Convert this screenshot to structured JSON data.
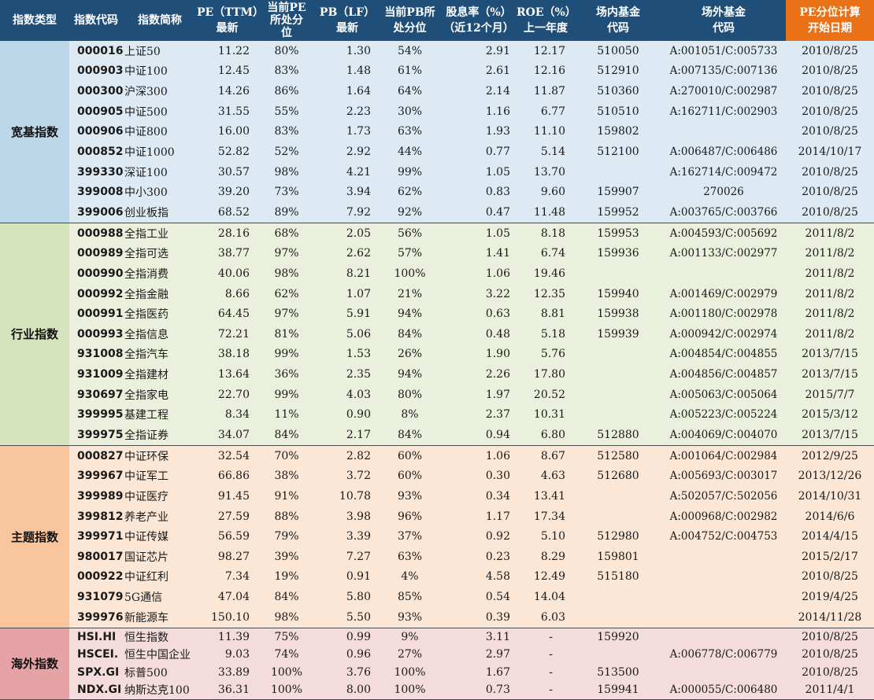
{
  "headers": {
    "type": "指数类型",
    "code": "指数代码",
    "name": "指数简称",
    "pe_a": "PE（TTM）",
    "pe_b": "最新",
    "pep_a": "当前PE",
    "pep_b": "所处分",
    "pep_c": "位",
    "pb_a": "PB（LF）",
    "pb_b": "最新",
    "pbp_a": "当前PB所",
    "pbp_b": "处分位",
    "div_a": "股息率（%）",
    "div_b": "（近12个月）",
    "roe_a": "ROE（%）",
    "roe_b": "上一年度",
    "inner_a": "场内基金",
    "inner_b": "代码",
    "outer_a": "场外基金",
    "outer_b": "代码",
    "start_a": "PE分位计算",
    "start_b": "开始日期"
  },
  "colors": {
    "header": "#1f4e79",
    "header_highlight": "#e97118",
    "broad": "#deeaf3",
    "industry": "#eaf0db",
    "theme": "#fce6d6",
    "overseas": "#f4dcdc"
  },
  "groups": [
    {
      "category": "宽基指数",
      "rows": [
        {
          "code": "000016",
          "name": "上证50",
          "pe": "11.22",
          "pe_pct": "80%",
          "pb": "1.30",
          "pb_pct": "54%",
          "div": "2.91",
          "roe": "12.17",
          "inner": "510050",
          "outer": "A:001051/C:005733",
          "start": "2010/8/25"
        },
        {
          "code": "000903",
          "name": "中证100",
          "pe": "12.45",
          "pe_pct": "83%",
          "pb": "1.48",
          "pb_pct": "61%",
          "div": "2.61",
          "roe": "12.16",
          "inner": "512910",
          "outer": "A:007135/C:007136",
          "start": "2010/8/25"
        },
        {
          "code": "000300",
          "name": "沪深300",
          "pe": "14.26",
          "pe_pct": "86%",
          "pb": "1.64",
          "pb_pct": "64%",
          "div": "2.14",
          "roe": "11.87",
          "inner": "510360",
          "outer": "A:270010/C:002987",
          "start": "2010/8/25"
        },
        {
          "code": "000905",
          "name": "中证500",
          "pe": "31.55",
          "pe_pct": "55%",
          "pb": "2.23",
          "pb_pct": "30%",
          "div": "1.16",
          "roe": "6.77",
          "inner": "510510",
          "outer": "A:162711/C:002903",
          "start": "2010/8/25"
        },
        {
          "code": "000906",
          "name": "中证800",
          "pe": "16.00",
          "pe_pct": "83%",
          "pb": "1.73",
          "pb_pct": "63%",
          "div": "1.93",
          "roe": "11.10",
          "inner": "159802",
          "outer": "",
          "start": "2010/8/25"
        },
        {
          "code": "000852",
          "name": "中证1000",
          "pe": "52.82",
          "pe_pct": "52%",
          "pb": "2.92",
          "pb_pct": "44%",
          "div": "0.77",
          "roe": "5.14",
          "inner": "512100",
          "outer": "A:006487/C:006486",
          "start": "2014/10/17"
        },
        {
          "code": "399330",
          "name": "深证100",
          "pe": "30.57",
          "pe_pct": "98%",
          "pb": "4.21",
          "pb_pct": "99%",
          "div": "1.05",
          "roe": "13.70",
          "inner": "",
          "outer": "A:162714/C:009472",
          "start": "2010/8/25"
        },
        {
          "code": "399008",
          "name": "中小300",
          "pe": "39.20",
          "pe_pct": "73%",
          "pb": "3.94",
          "pb_pct": "62%",
          "div": "0.83",
          "roe": "9.60",
          "inner": "159907",
          "outer": "270026",
          "start": "2010/8/25"
        },
        {
          "code": "399006",
          "name": "创业板指",
          "pe": "68.52",
          "pe_pct": "89%",
          "pb": "7.92",
          "pb_pct": "92%",
          "div": "0.47",
          "roe": "11.48",
          "inner": "159952",
          "outer": "A:003765/C:003766",
          "start": "2010/8/25"
        }
      ]
    },
    {
      "category": "行业指数",
      "rows": [
        {
          "code": "000988",
          "name": "全指工业",
          "pe": "28.16",
          "pe_pct": "68%",
          "pb": "2.05",
          "pb_pct": "56%",
          "div": "1.05",
          "roe": "8.18",
          "inner": "159953",
          "outer": "A:004593/C:005692",
          "start": "2011/8/2"
        },
        {
          "code": "000989",
          "name": "全指可选",
          "pe": "38.77",
          "pe_pct": "97%",
          "pb": "2.62",
          "pb_pct": "57%",
          "div": "1.41",
          "roe": "6.74",
          "inner": "159936",
          "outer": "A:001133/C:002977",
          "start": "2011/8/2"
        },
        {
          "code": "000990",
          "name": "全指消费",
          "pe": "40.06",
          "pe_pct": "98%",
          "pb": "8.21",
          "pb_pct": "100%",
          "div": "1.06",
          "roe": "19.46",
          "inner": "",
          "outer": "",
          "start": "2011/8/2"
        },
        {
          "code": "000992",
          "name": "全指金融",
          "pe": "8.66",
          "pe_pct": "62%",
          "pb": "1.07",
          "pb_pct": "21%",
          "div": "3.22",
          "roe": "12.35",
          "inner": "159940",
          "outer": "A:001469/C:002979",
          "start": "2011/8/2"
        },
        {
          "code": "000991",
          "name": "全指医药",
          "pe": "64.45",
          "pe_pct": "97%",
          "pb": "5.91",
          "pb_pct": "94%",
          "div": "0.63",
          "roe": "8.81",
          "inner": "159938",
          "outer": "A:001180/C:002978",
          "start": "2011/8/2"
        },
        {
          "code": "000993",
          "name": "全指信息",
          "pe": "72.21",
          "pe_pct": "81%",
          "pb": "5.06",
          "pb_pct": "84%",
          "div": "0.48",
          "roe": "5.18",
          "inner": "159939",
          "outer": "A:000942/C:002974",
          "start": "2011/8/2"
        },
        {
          "code": "931008",
          "name": "全指汽车",
          "pe": "38.18",
          "pe_pct": "99%",
          "pb": "1.53",
          "pb_pct": "26%",
          "div": "1.90",
          "roe": "5.76",
          "inner": "",
          "outer": "A:004854/C:004855",
          "start": "2013/7/15"
        },
        {
          "code": "931009",
          "name": "全指建材",
          "pe": "13.64",
          "pe_pct": "36%",
          "pb": "2.35",
          "pb_pct": "94%",
          "div": "2.26",
          "roe": "17.80",
          "inner": "",
          "outer": "A:004856/C:004857",
          "start": "2013/7/15"
        },
        {
          "code": "930697",
          "name": "全指家电",
          "pe": "22.70",
          "pe_pct": "99%",
          "pb": "4.03",
          "pb_pct": "80%",
          "div": "1.97",
          "roe": "20.52",
          "inner": "",
          "outer": "A:005063/C:005064",
          "start": "2015/7/7"
        },
        {
          "code": "399995",
          "name": "基建工程",
          "pe": "8.34",
          "pe_pct": "11%",
          "pb": "0.90",
          "pb_pct": "8%",
          "div": "2.37",
          "roe": "10.31",
          "inner": "",
          "outer": "A:005223/C:005224",
          "start": "2015/3/12"
        },
        {
          "code": "399975",
          "name": "全指证券",
          "pe": "34.07",
          "pe_pct": "84%",
          "pb": "2.17",
          "pb_pct": "84%",
          "div": "0.94",
          "roe": "6.80",
          "inner": "512880",
          "outer": "A:004069/C:004070",
          "start": "2013/7/15"
        }
      ]
    },
    {
      "category": "主题指数",
      "rows": [
        {
          "code": "000827",
          "name": "中证环保",
          "pe": "32.54",
          "pe_pct": "70%",
          "pb": "2.82",
          "pb_pct": "60%",
          "div": "1.06",
          "roe": "8.67",
          "inner": "512580",
          "outer": "A:001064/C:002984",
          "start": "2012/9/25"
        },
        {
          "code": "399967",
          "name": "中证军工",
          "pe": "66.86",
          "pe_pct": "38%",
          "pb": "3.72",
          "pb_pct": "60%",
          "div": "0.30",
          "roe": "4.63",
          "inner": "512680",
          "outer": "A:005693/C:003017",
          "start": "2013/12/26"
        },
        {
          "code": "399989",
          "name": "中证医疗",
          "pe": "91.45",
          "pe_pct": "91%",
          "pb": "10.78",
          "pb_pct": "93%",
          "div": "0.34",
          "roe": "13.41",
          "inner": "",
          "outer": "A:502057/C:502056",
          "start": "2014/10/31"
        },
        {
          "code": "399812",
          "name": "养老产业",
          "pe": "27.59",
          "pe_pct": "88%",
          "pb": "3.98",
          "pb_pct": "96%",
          "div": "1.17",
          "roe": "17.34",
          "inner": "",
          "outer": "A:000968/C:002982",
          "start": "2014/6/6"
        },
        {
          "code": "399971",
          "name": "中证传媒",
          "pe": "56.59",
          "pe_pct": "79%",
          "pb": "3.39",
          "pb_pct": "37%",
          "div": "0.92",
          "roe": "5.10",
          "inner": "512980",
          "outer": "A:004752/C:004753",
          "start": "2014/4/15"
        },
        {
          "code": "980017",
          "name": "国证芯片",
          "pe": "98.27",
          "pe_pct": "39%",
          "pb": "7.27",
          "pb_pct": "63%",
          "div": "0.23",
          "roe": "8.29",
          "inner": "159801",
          "outer": "",
          "start": "2015/2/17"
        },
        {
          "code": "000922",
          "name": "中证红利",
          "pe": "7.34",
          "pe_pct": "19%",
          "pb": "0.91",
          "pb_pct": "4%",
          "div": "4.58",
          "roe": "12.49",
          "inner": "515180",
          "outer": "",
          "start": "2010/8/25"
        },
        {
          "code": "931079",
          "name": "5G通信",
          "pe": "47.04",
          "pe_pct": "84%",
          "pb": "5.80",
          "pb_pct": "85%",
          "div": "0.54",
          "roe": "14.04",
          "inner": "",
          "outer": "",
          "start": "2019/4/25"
        },
        {
          "code": "399976",
          "name": "新能源车",
          "pe": "150.10",
          "pe_pct": "98%",
          "pb": "5.50",
          "pb_pct": "93%",
          "div": "0.39",
          "roe": "6.03",
          "inner": "",
          "outer": "",
          "start": "2014/11/28"
        }
      ]
    },
    {
      "category": "海外指数",
      "rows": [
        {
          "code": "HSI.HI",
          "name": "恒生指数",
          "pe": "11.39",
          "pe_pct": "75%",
          "pb": "0.99",
          "pb_pct": "9%",
          "div": "3.11",
          "roe": "-",
          "inner": "159920",
          "outer": "",
          "start": "2010/8/25"
        },
        {
          "code": "HSCEI.",
          "name": "恒生中国企业",
          "pe": "9.03",
          "pe_pct": "74%",
          "pb": "0.96",
          "pb_pct": "27%",
          "div": "2.97",
          "roe": "-",
          "inner": "",
          "outer": "A:006778/C:006779",
          "start": "2010/8/25"
        },
        {
          "code": "SPX.GI",
          "name": "标普500",
          "pe": "33.89",
          "pe_pct": "100%",
          "pb": "3.76",
          "pb_pct": "100%",
          "div": "1.67",
          "roe": "-",
          "inner": "513500",
          "outer": "",
          "start": "2010/8/25"
        },
        {
          "code": "NDX.GI",
          "name": "纳斯达克100",
          "pe": "36.31",
          "pe_pct": "100%",
          "pb": "8.00",
          "pb_pct": "100%",
          "div": "0.73",
          "roe": "-",
          "inner": "159941",
          "outer": "A:000055/C:006480",
          "start": "2011/4/1"
        }
      ]
    }
  ]
}
